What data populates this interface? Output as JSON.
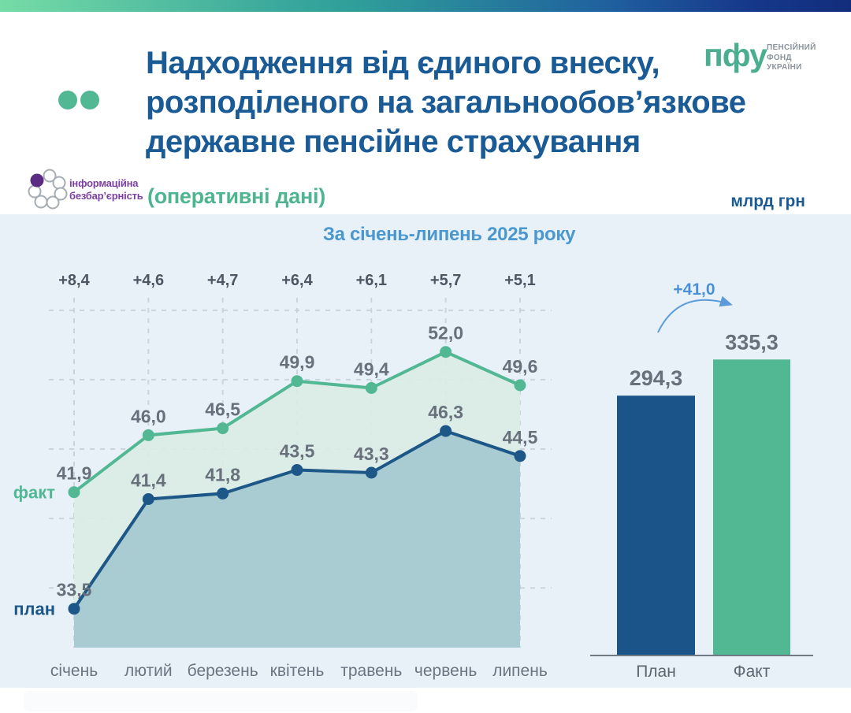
{
  "header": {
    "title_lines": [
      "Надходження від єдиного внеску,",
      "розподіленого на загальнообов’язкове",
      "державне пенсійне страхування"
    ],
    "subtitle": "(оперативні дані)",
    "units_label": "млрд грн",
    "pfu_logo": {
      "abbr": "пфу",
      "name_lines": [
        "ПЕНСІЙНИЙ",
        "ФОНД",
        "УКРАЇНИ"
      ],
      "color": "#4cae90"
    },
    "accessibility_logo": {
      "line1": "інформаційна",
      "line2": "безбар’єрність",
      "color": "#7b3fa2"
    }
  },
  "chart_data": [
    {
      "type": "area",
      "title": "За січень-липень 2025 року",
      "categories": [
        "січень",
        "лютий",
        "березень",
        "квітень",
        "травень",
        "червень",
        "липень"
      ],
      "series": [
        {
          "name": "факт",
          "values": [
            41.9,
            46.0,
            46.5,
            49.9,
            49.4,
            52.0,
            49.6
          ],
          "labels": [
            "41,9",
            "46,0",
            "46,5",
            "49,9",
            "49,4",
            "52,0",
            "49,6"
          ],
          "color": "#52b894",
          "fill": "rgba(218,236,228,0.9)"
        },
        {
          "name": "план",
          "values": [
            33.5,
            41.4,
            41.8,
            43.5,
            43.3,
            46.3,
            44.5
          ],
          "labels": [
            "33,5",
            "41,4",
            "41,8",
            "43,5",
            "43,3",
            "46,3",
            "44,5"
          ],
          "color": "#1d5788",
          "fill": "rgba(163,200,208,0.9)"
        }
      ],
      "deltas": [
        "+8,4",
        "+4,6",
        "+4,7",
        "+6,4",
        "+6,1",
        "+5,7",
        "+5,1"
      ],
      "grid_values": [
        35,
        40,
        45,
        50,
        55
      ],
      "ylim": [
        30.7,
        56
      ],
      "grid": "dashed",
      "legend_position": "left-of-first-point"
    },
    {
      "type": "bar",
      "categories": [
        "План",
        "Факт"
      ],
      "values": [
        294.3,
        335.3
      ],
      "labels": [
        "294,3",
        "335,3"
      ],
      "colors": [
        "#1a5488",
        "#52b894"
      ],
      "annotation": "+41,0",
      "annotation_color": "#4a90d9",
      "ylim": [
        0,
        360
      ]
    }
  ]
}
